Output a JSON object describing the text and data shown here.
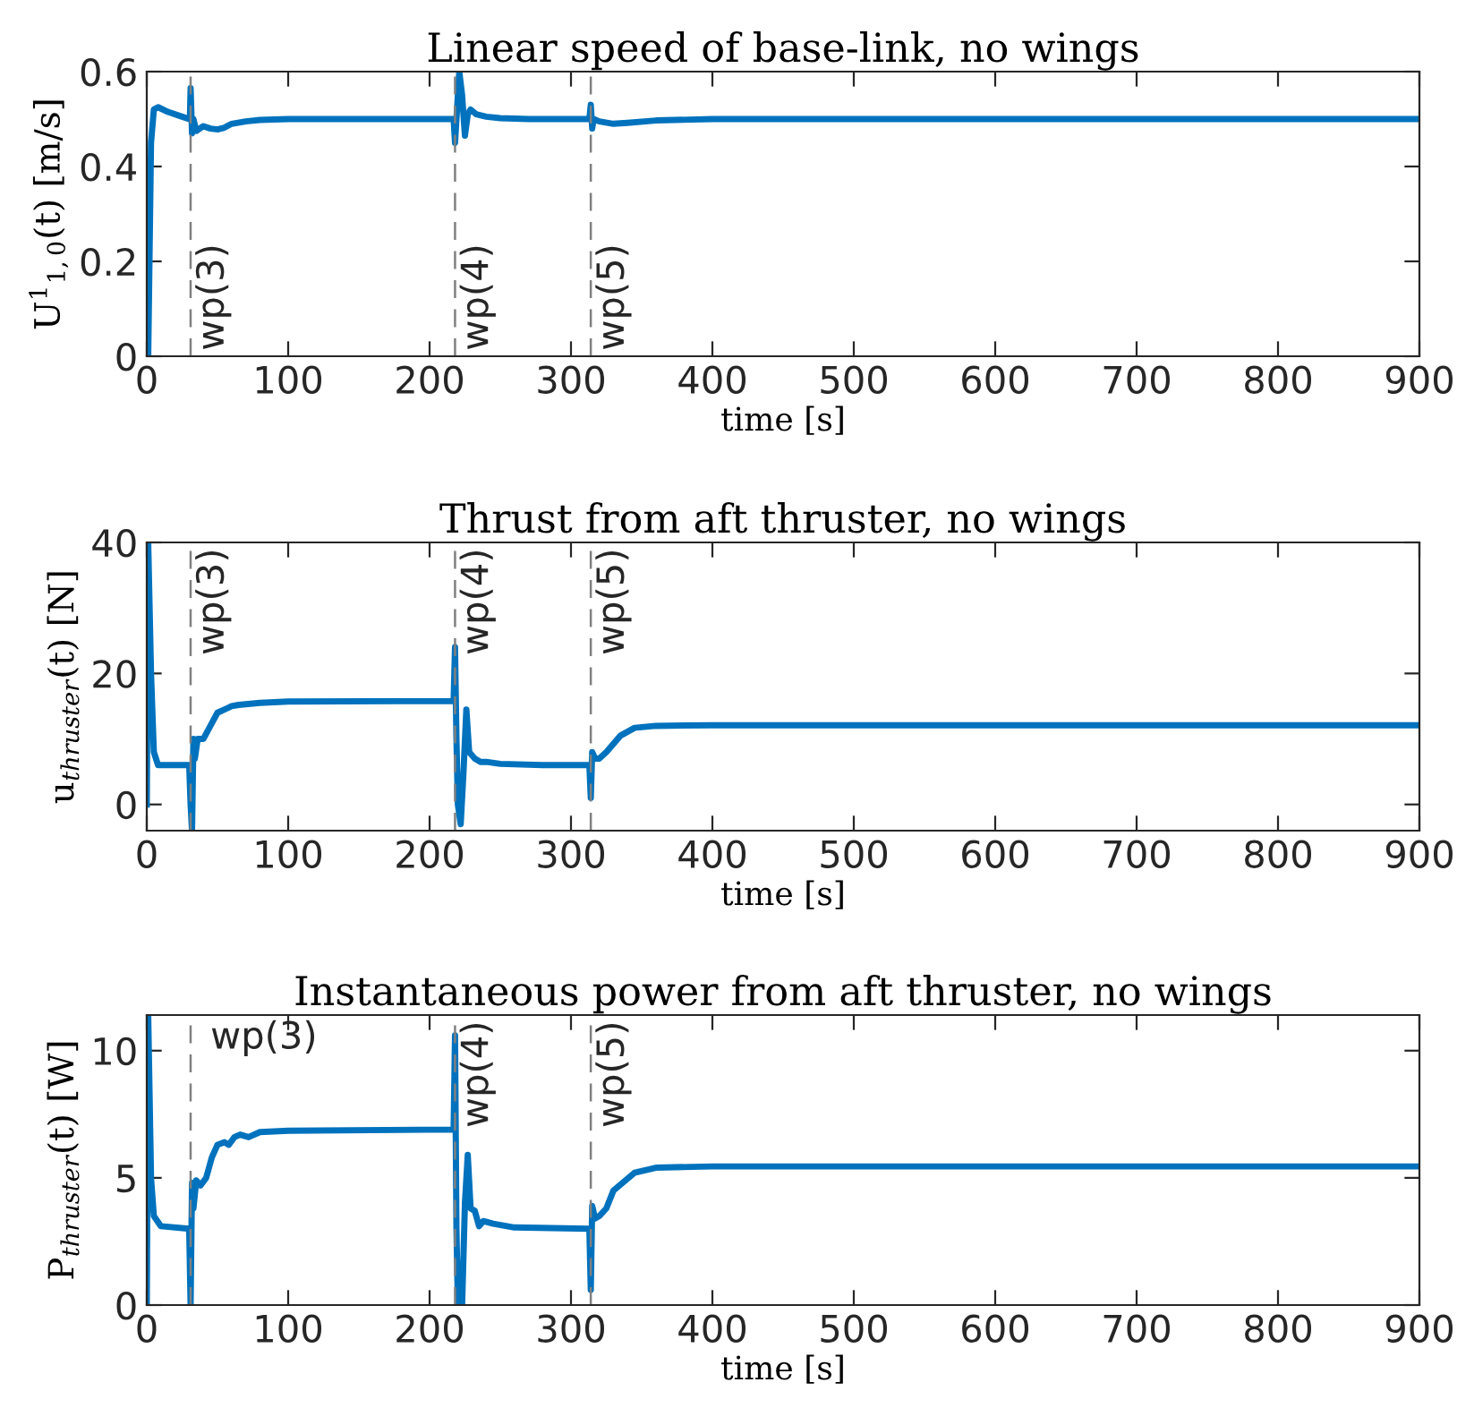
{
  "chart_data": [
    {
      "type": "line",
      "title": "Linear speed of base-link, no wings",
      "xlabel": "time [s]",
      "ylabel": "U$^{1}$$_{1,0}$(t) [m/s]",
      "series": [
        {
          "color": "#0072bd",
          "x": [
            0,
            1,
            3,
            5,
            8,
            15,
            25,
            30,
            30.5,
            31,
            32,
            33,
            35,
            40,
            45,
            50,
            55,
            60,
            70,
            80,
            100,
            217,
            218,
            219,
            221,
            223,
            225,
            227,
            229,
            233,
            240,
            250,
            270,
            313,
            314,
            315,
            316,
            320,
            330,
            340,
            360,
            400,
            900
          ],
          "values": [
            0,
            0,
            0.45,
            0.52,
            0.525,
            0.515,
            0.505,
            0.5,
            0.5,
            0.565,
            0.47,
            0.5,
            0.475,
            0.485,
            0.48,
            0.478,
            0.482,
            0.49,
            0.495,
            0.498,
            0.5,
            0.5,
            0.45,
            0.5,
            0.6,
            0.55,
            0.465,
            0.51,
            0.52,
            0.51,
            0.505,
            0.502,
            0.5,
            0.5,
            0.53,
            0.48,
            0.5,
            0.495,
            0.49,
            0.492,
            0.497,
            0.5,
            0.5
          ]
        }
      ],
      "xlim": [
        0,
        900
      ],
      "xticks": [
        0,
        100,
        200,
        300,
        400,
        500,
        600,
        700,
        800,
        900
      ],
      "ylim": [
        0,
        0.6
      ],
      "yticks": [
        0,
        0.2,
        0.4,
        0.6
      ],
      "grid": false,
      "line_style": "solid",
      "ref_lines": [
        {
          "axis": "x",
          "value": 31,
          "label": "wp(3)",
          "color": "#808080",
          "line_style": "dashed"
        },
        {
          "axis": "x",
          "value": 218,
          "label": "wp(4)",
          "color": "#808080",
          "line_style": "dashed"
        },
        {
          "axis": "x",
          "value": 314,
          "label": "wp(5)",
          "color": "#808080",
          "line_style": "dashed"
        }
      ]
    },
    {
      "type": "line",
      "title": "Thrust from aft thruster, no wings",
      "xlabel": "time [s]",
      "ylabel": "u$_{thruster}$(t) [N]",
      "series": [
        {
          "color": "#0072bd",
          "x": [
            0,
            1,
            3,
            5,
            8,
            15,
            30,
            31,
            32,
            33,
            34,
            36,
            40,
            45,
            50,
            55,
            60,
            65,
            80,
            100,
            217,
            218,
            219,
            220,
            222,
            224,
            226,
            228,
            232,
            236,
            240,
            250,
            280,
            313,
            314,
            315,
            317,
            320,
            325,
            335,
            345,
            360,
            400,
            900
          ],
          "values": [
            0,
            40,
            20,
            8,
            6,
            6,
            6,
            0,
            -4,
            10,
            7,
            10,
            10,
            12,
            14,
            14.5,
            15,
            15.2,
            15.5,
            15.7,
            15.8,
            24,
            10,
            0,
            -3,
            5,
            14.5,
            8,
            7,
            6.5,
            6.5,
            6.2,
            6,
            6,
            1,
            8,
            7,
            7,
            8,
            10.5,
            11.7,
            12,
            12.1,
            12.1
          ]
        }
      ],
      "xlim": [
        0,
        900
      ],
      "xticks": [
        0,
        100,
        200,
        300,
        400,
        500,
        600,
        700,
        800,
        900
      ],
      "ylim": [
        -4,
        40
      ],
      "yticks": [
        0,
        20,
        40
      ],
      "grid": false,
      "line_style": "solid",
      "ref_lines": [
        {
          "axis": "x",
          "value": 31,
          "label": "wp(3)",
          "color": "#808080",
          "line_style": "dashed"
        },
        {
          "axis": "x",
          "value": 218,
          "label": "wp(4)",
          "color": "#808080",
          "line_style": "dashed"
        },
        {
          "axis": "x",
          "value": 314,
          "label": "wp(5)",
          "color": "#808080",
          "line_style": "dashed"
        }
      ]
    },
    {
      "type": "line",
      "title": "Instantaneous power from aft thruster, no wings",
      "xlabel": "time [s]",
      "ylabel": "P$_{thruster}$(t) [W]",
      "series": [
        {
          "color": "#0072bd",
          "x": [
            0,
            1,
            3,
            5,
            10,
            30,
            31,
            32,
            33,
            35,
            38,
            42,
            46,
            50,
            55,
            58,
            62,
            66,
            72,
            80,
            100,
            217,
            218,
            219,
            220,
            222,
            223,
            225,
            227,
            229,
            232,
            235,
            238,
            245,
            260,
            313,
            314,
            315,
            317,
            320,
            325,
            330,
            345,
            360,
            400,
            900
          ],
          "values": [
            0,
            11.4,
            5,
            3.5,
            3.1,
            3,
            0,
            4.8,
            3.8,
            4.9,
            4.7,
            5,
            5.8,
            6.3,
            6.4,
            6.3,
            6.6,
            6.7,
            6.6,
            6.8,
            6.85,
            6.9,
            10.6,
            3,
            0,
            1,
            0,
            4,
            5.9,
            3.8,
            3.7,
            3.1,
            3.3,
            3.2,
            3.05,
            3,
            0.6,
            3.9,
            3.4,
            3.5,
            3.8,
            4.5,
            5.2,
            5.4,
            5.45,
            5.45
          ]
        }
      ],
      "xlim": [
        0,
        900
      ],
      "xticks": [
        0,
        100,
        200,
        300,
        400,
        500,
        600,
        700,
        800,
        900
      ],
      "ylim": [
        0,
        11.4
      ],
      "yticks": [
        0,
        5,
        10
      ],
      "grid": false,
      "line_style": "solid",
      "ref_lines": [
        {
          "axis": "x",
          "value": 31,
          "label": "wp(3)",
          "color": "#808080",
          "line_style": "dashed"
        },
        {
          "axis": "x",
          "value": 218,
          "label": "wp(4)",
          "color": "#808080",
          "line_style": "dashed"
        },
        {
          "axis": "x",
          "value": 314,
          "label": "wp(5)",
          "color": "#808080",
          "line_style": "dashed"
        }
      ]
    }
  ]
}
